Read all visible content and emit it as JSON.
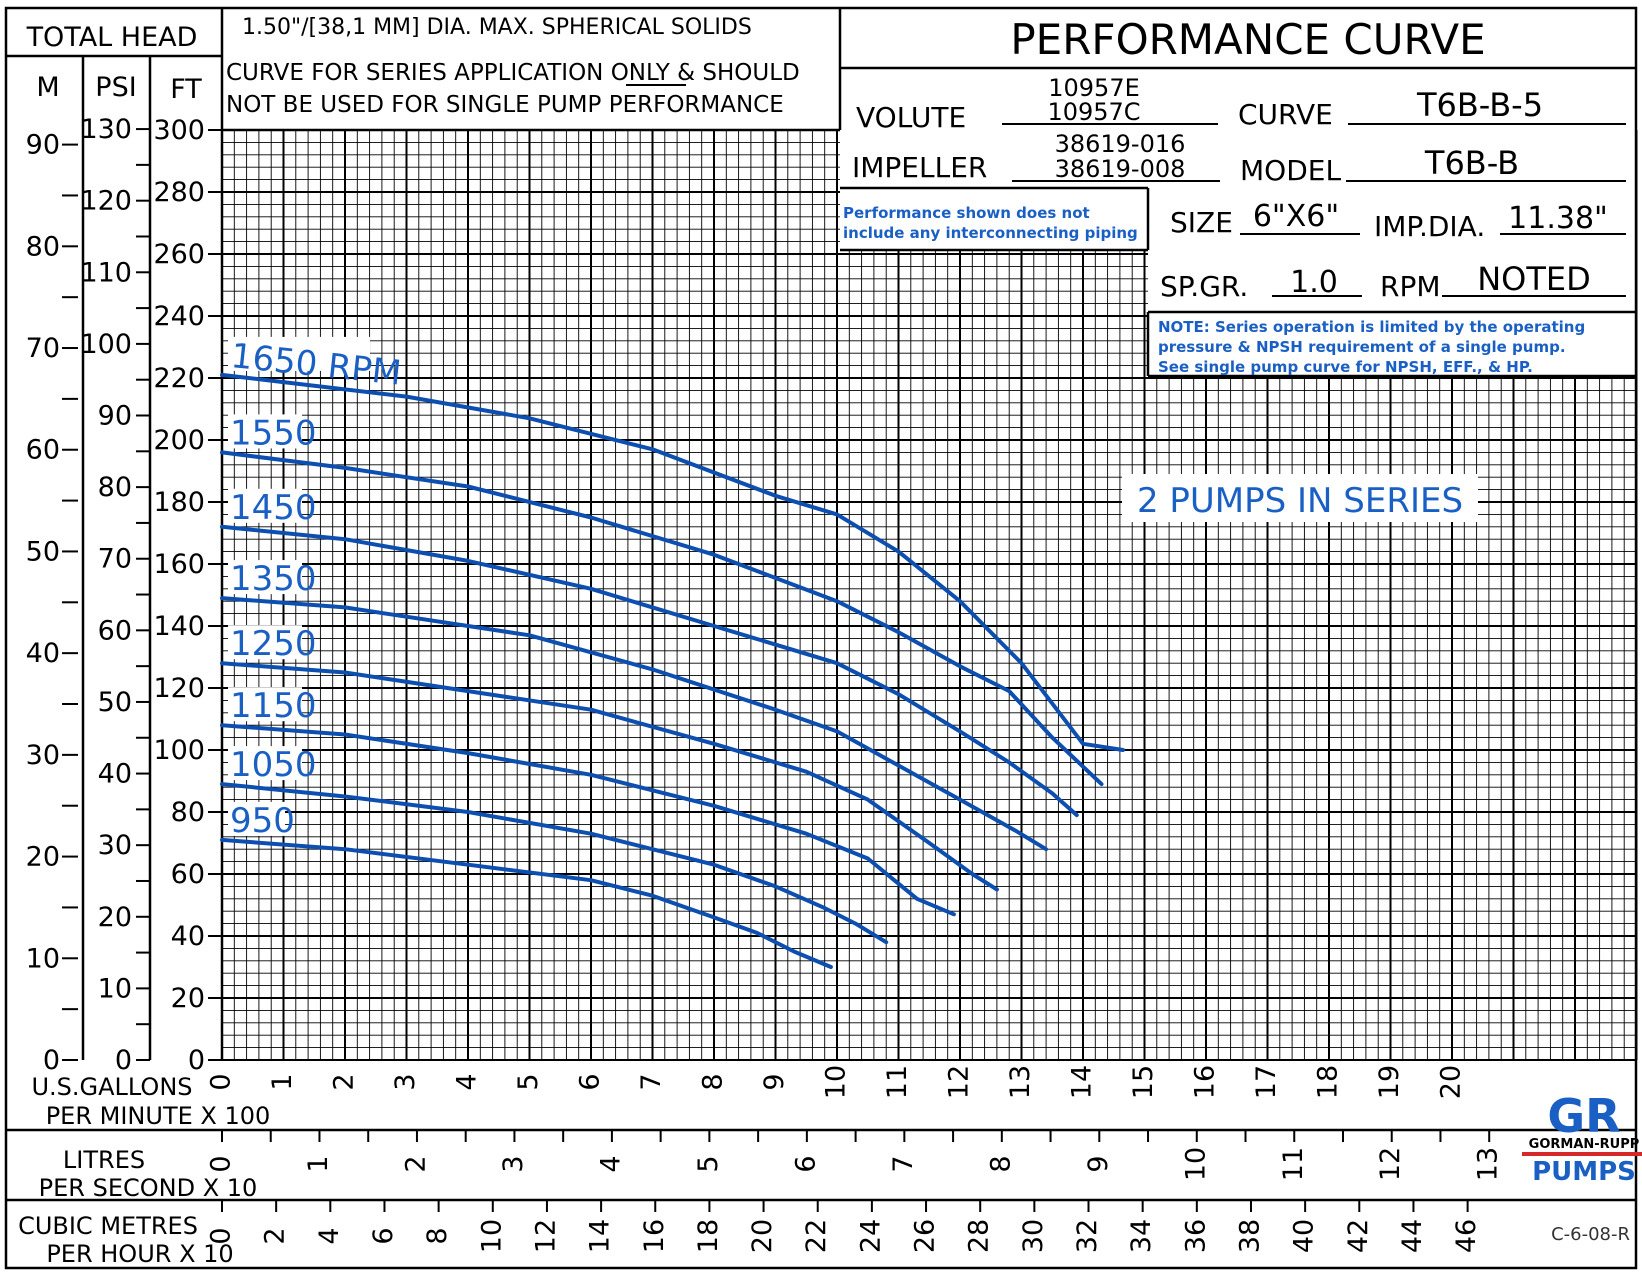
{
  "header": {
    "total_head": "TOTAL HEAD",
    "solids_note": "1.50\"/[38,1 MM] DIA. MAX. SPHERICAL SOLIDS",
    "series_note_line1": "CURVE FOR SERIES APPLICATION ONLY & SHOULD",
    "series_note_line2": "NOT BE USED FOR SINGLE PUMP PERFORMANCE",
    "title": "PERFORMANCE CURVE"
  },
  "info": {
    "volute_label": "VOLUTE",
    "volute_value1": "10957E",
    "volute_value2": "10957C",
    "curve_label": "CURVE",
    "curve_value": "T6B-B-5",
    "impeller_label": "IMPELLER",
    "impeller_value1": "38619-016",
    "impeller_value2": "38619-008",
    "model_label": "MODEL",
    "model_value": "T6B-B",
    "piping_note_line1": "Performance shown does not",
    "piping_note_line2": "include any interconnecting piping",
    "size_label": "SIZE",
    "size_value": "6\"X6\"",
    "impdia_label": "IMP.DIA.",
    "impdia_value": "11.38\"",
    "spgr_label": "SP.GR.",
    "spgr_value": "1.0",
    "rpm_label": "RPM",
    "rpm_value": "NOTED",
    "series_note_line1": "NOTE: Series operation is limited by the operating",
    "series_note_line2": "pressure & NPSH requirement of a single pump.",
    "series_note_line3": "See single pump curve for NPSH, EFF., & HP.",
    "pumps_in_series": "2 PUMPS IN SERIES"
  },
  "axes": {
    "m_label": "M",
    "psi_label": "PSI",
    "ft_label": "FT",
    "gpm_label_line1": "U.S.GALLONS",
    "gpm_label_line2": "PER MINUTE X 100",
    "lps_label_line1": "LITRES",
    "lps_label_line2": "PER SECOND X 10",
    "cmh_label_line1": "CUBIC METRES",
    "cmh_label_line2": "PER HOUR X 10"
  },
  "footer": {
    "logo_mark": "GR",
    "logo_name": "GORMAN-RUPP",
    "logo_pumps": "PUMPS",
    "drawing_code": "C-6-08-R"
  },
  "colors": {
    "curve": "#0d4fb0",
    "label": "#1a5fc4",
    "grid": "#000000",
    "logo_blue": "#1a5fc4",
    "logo_red": "#d62828"
  },
  "chart_data": {
    "type": "line",
    "xlabel": "U.S.GALLONS PER MINUTE X 100",
    "ylabel": "TOTAL HEAD",
    "xlim": [
      0,
      23
    ],
    "ylim": [
      0,
      300
    ],
    "x_ticks": [
      "0",
      "1",
      "2",
      "3",
      "4",
      "5",
      "6",
      "7",
      "8",
      "9",
      "10",
      "11",
      "12",
      "13",
      "14",
      "15",
      "16",
      "17",
      "18",
      "19",
      "20"
    ],
    "ft_ticks": [
      "0",
      "20",
      "40",
      "60",
      "80",
      "100",
      "120",
      "140",
      "160",
      "180",
      "200",
      "220",
      "240",
      "260",
      "280",
      "300"
    ],
    "psi_ticks": [
      "0",
      "10",
      "20",
      "30",
      "40",
      "50",
      "60",
      "70",
      "80",
      "90",
      "100",
      "110",
      "120",
      "130"
    ],
    "m_ticks": [
      "0",
      "10",
      "20",
      "30",
      "40",
      "50",
      "60",
      "70",
      "80",
      "90"
    ],
    "lps_ticks": [
      "0",
      "1",
      "2",
      "3",
      "4",
      "5",
      "6",
      "7",
      "8",
      "9",
      "10",
      "11",
      "12",
      "13"
    ],
    "cmh_ticks": [
      "0",
      "2",
      "4",
      "6",
      "8",
      "10",
      "12",
      "14",
      "16",
      "18",
      "20",
      "22",
      "24",
      "26",
      "28",
      "30",
      "32",
      "34",
      "36",
      "38",
      "40",
      "42",
      "44",
      "46"
    ],
    "series": [
      {
        "name": "1650 RPM",
        "x": [
          0,
          3,
          5,
          7,
          9,
          10,
          11,
          12,
          13,
          14,
          14.65
        ],
        "y": [
          221,
          214,
          207,
          197,
          182,
          176,
          164,
          148,
          128,
          102,
          100
        ]
      },
      {
        "name": "1550",
        "x": [
          0,
          2,
          4,
          6,
          8,
          10,
          11,
          12,
          12.8,
          13.5,
          14.3
        ],
        "y": [
          196,
          191,
          185,
          175,
          163,
          148,
          138,
          127,
          119,
          104,
          89
        ]
      },
      {
        "name": "1450",
        "x": [
          0,
          2,
          4,
          6,
          8,
          10,
          11,
          12,
          12.8,
          13.5,
          13.9
        ],
        "y": [
          172,
          168,
          161,
          152,
          140,
          128,
          118,
          106,
          96,
          86,
          79
        ]
      },
      {
        "name": "1350",
        "x": [
          0,
          2,
          3,
          5,
          7,
          9,
          10,
          11,
          12,
          12.9,
          13.4
        ],
        "y": [
          149,
          146,
          143,
          137,
          126,
          113,
          106,
          95,
          84,
          74,
          68
        ]
      },
      {
        "name": "1250",
        "x": [
          0,
          2,
          4,
          6,
          8,
          9.5,
          10.5,
          11.5,
          12.2,
          12.6
        ],
        "y": [
          128,
          125,
          119,
          113,
          102,
          93,
          84,
          70,
          60,
          55
        ]
      },
      {
        "name": "1150",
        "x": [
          0,
          2,
          4,
          6,
          8,
          9.5,
          10.5,
          11.3,
          11.9
        ],
        "y": [
          108,
          105,
          99,
          92,
          82,
          73,
          65,
          52,
          47
        ]
      },
      {
        "name": "1050",
        "x": [
          0,
          2,
          4,
          6,
          8,
          9,
          9.8,
          10.3,
          10.8
        ],
        "y": [
          89,
          85,
          80,
          73,
          63,
          56,
          49,
          44,
          38
        ]
      },
      {
        "name": "950",
        "x": [
          0,
          2,
          4,
          6,
          7,
          8,
          8.7,
          9.3,
          9.9
        ],
        "y": [
          71,
          68,
          63,
          58,
          53,
          46,
          41,
          35,
          30
        ]
      }
    ]
  }
}
